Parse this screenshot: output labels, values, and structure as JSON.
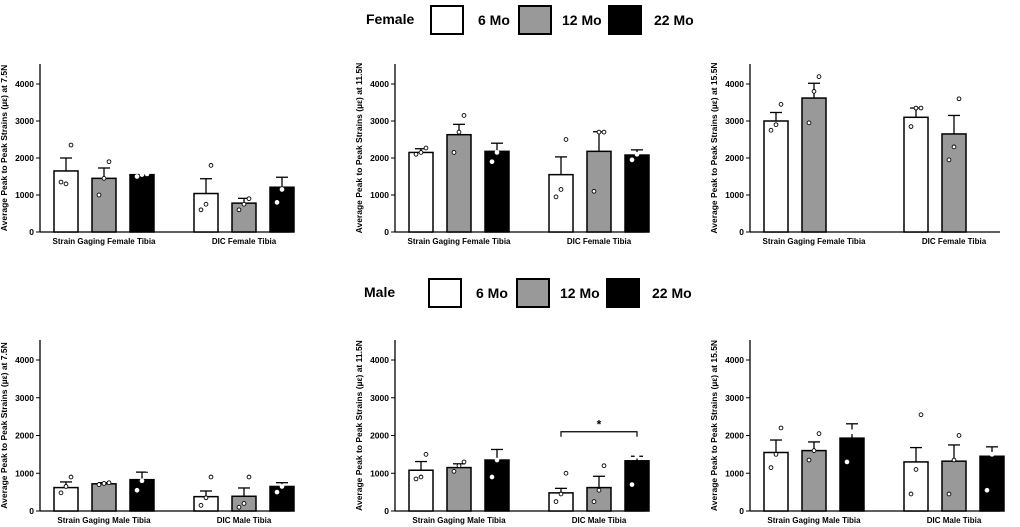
{
  "legends": [
    {
      "title": "Female",
      "items": [
        {
          "label": "6 Mo",
          "color": "#ffffff"
        },
        {
          "label": "12 Mo",
          "color": "#999999"
        },
        {
          "label": "22 Mo",
          "color": "#000000"
        }
      ]
    },
    {
      "title": "Male",
      "items": [
        {
          "label": "6 Mo",
          "color": "#ffffff"
        },
        {
          "label": "12 Mo",
          "color": "#999999"
        },
        {
          "label": "22 Mo",
          "color": "#000000"
        }
      ]
    }
  ],
  "chart_data": [
    {
      "type": "bar",
      "ylabel": "Average Peak to Peak Strains (µε) at 7.5N",
      "ylim": [
        0,
        4000
      ],
      "yticks": [
        0,
        1000,
        2000,
        3000,
        4000
      ],
      "groups": [
        "Strain Gaging",
        "DIC"
      ],
      "group_labels": [
        "Strain Gaging   Female Tibia",
        "DIC Female Tibia"
      ],
      "series": [
        {
          "name": "6 Mo",
          "values": [
            1650,
            1040
          ],
          "errors": [
            350,
            400
          ],
          "points": [
            [
              1350,
              1300,
              2350
            ],
            [
              600,
              750,
              1800
            ]
          ]
        },
        {
          "name": "12 Mo",
          "values": [
            1450,
            780
          ],
          "errors": [
            280,
            130
          ],
          "points": [
            [
              1000,
              1450,
              1900
            ],
            [
              600,
              750,
              900
            ]
          ]
        },
        {
          "name": "22 Mo",
          "values": [
            1550,
            1210
          ],
          "errors": [
            0,
            270
          ],
          "points": [
            [
              1500,
              1550,
              1570
            ],
            [
              800,
              1150,
              1600
            ]
          ]
        }
      ]
    },
    {
      "type": "bar",
      "ylabel": "Average Peak to Peak Strains (µε) at 11.5N",
      "ylim": [
        0,
        4000
      ],
      "yticks": [
        0,
        1000,
        2000,
        3000,
        4000
      ],
      "groups": [
        "Strain Gaging",
        "DIC"
      ],
      "group_labels": [
        "Strain Gaging   Female Tibia",
        "DIC Female Tibia"
      ],
      "series": [
        {
          "name": "6 Mo",
          "values": [
            2150,
            1550
          ],
          "errors": [
            100,
            480
          ],
          "points": [
            [
              2100,
              2150,
              2270
            ],
            [
              950,
              1150,
              2500
            ]
          ]
        },
        {
          "name": "12 Mo",
          "values": [
            2630,
            2180
          ],
          "errors": [
            280,
            530
          ],
          "points": [
            [
              2150,
              2700,
              3150
            ],
            [
              1100,
              2700,
              2700
            ]
          ]
        },
        {
          "name": "22 Mo",
          "values": [
            2180,
            2080
          ],
          "errors": [
            220,
            140
          ],
          "points": [
            [
              1900,
              2150,
              2550
            ],
            [
              1950,
              2100,
              2350
            ]
          ]
        }
      ]
    },
    {
      "type": "bar",
      "ylabel": "Average Peak to Peak Strains (µε) at 15.5N",
      "ylim": [
        0,
        4000
      ],
      "yticks": [
        0,
        1000,
        2000,
        3000,
        4000
      ],
      "groups": [
        "Strain Gaging",
        "DIC"
      ],
      "group_labels": [
        "Strain Gaging   Female Tibia",
        "DIC Female Tibia"
      ],
      "series": [
        {
          "name": "6 Mo",
          "values": [
            3000,
            3100
          ],
          "errors": [
            230,
            250
          ],
          "points": [
            [
              2750,
              2900,
              3450
            ],
            [
              2850,
              3350,
              3350
            ]
          ]
        },
        {
          "name": "12 Mo",
          "values": [
            3620,
            2650
          ],
          "errors": [
            400,
            500
          ],
          "points": [
            [
              2950,
              3800,
              4200
            ],
            [
              1950,
              2300,
              3600
            ]
          ]
        },
        {
          "name": "22 Mo",
          "values": [
            null,
            null
          ],
          "errors": [
            null,
            null
          ],
          "points": [
            [],
            []
          ]
        }
      ]
    },
    {
      "type": "bar",
      "ylabel": "Average Peak to Peak Strains (µε) at 7.5N",
      "ylim": [
        0,
        4000
      ],
      "yticks": [
        0,
        1000,
        2000,
        3000,
        4000
      ],
      "groups": [
        "Strain Gaging",
        "DIC"
      ],
      "group_labels": [
        "Strain Gaging   Male Tibia",
        "DIC Male Tibia"
      ],
      "series": [
        {
          "name": "6 Mo",
          "values": [
            620,
            380
          ],
          "errors": [
            150,
            150
          ],
          "points": [
            [
              480,
              650,
              900
            ],
            [
              150,
              350,
              900
            ]
          ]
        },
        {
          "name": "12 Mo",
          "values": [
            720,
            390
          ],
          "errors": [
            30,
            220
          ],
          "points": [
            [
              700,
              730,
              750
            ],
            [
              100,
              200,
              900
            ]
          ]
        },
        {
          "name": "22 Mo",
          "values": [
            830,
            650
          ],
          "errors": [
            200,
            100
          ],
          "points": [
            [
              550,
              800,
              1100
            ],
            [
              500,
              650,
              850
            ]
          ]
        }
      ]
    },
    {
      "type": "bar",
      "ylabel": "Average Peak to Peak Strains (µε) at 11.5N",
      "ylim": [
        0,
        4000
      ],
      "yticks": [
        0,
        1000,
        2000,
        3000,
        4000
      ],
      "groups": [
        "Strain Gaging",
        "DIC"
      ],
      "group_labels": [
        "Strain Gaging   Male Tibia",
        "DIC Male Tibia"
      ],
      "series": [
        {
          "name": "6 Mo",
          "values": [
            1080,
            480
          ],
          "errors": [
            230,
            120
          ],
          "points": [
            [
              850,
              900,
              1500
            ],
            [
              250,
              450,
              1000
            ]
          ]
        },
        {
          "name": "12 Mo",
          "values": [
            1150,
            620
          ],
          "errors": [
            100,
            300
          ],
          "points": [
            [
              1050,
              1200,
              1300
            ],
            [
              250,
              550,
              1200
            ]
          ]
        },
        {
          "name": "22 Mo",
          "values": [
            1350,
            1330
          ],
          "errors": [
            280,
            120
          ],
          "points": [
            [
              900,
              1350,
              1850
            ],
            [
              700,
              1450,
              1600
            ]
          ]
        }
      ],
      "annotation": {
        "text": "*",
        "from_group": 1,
        "from_series": 0,
        "to_series": 2,
        "y": 2100
      }
    },
    {
      "type": "bar",
      "ylabel": "Average Peak to Peak Strains (µε) at 15.5N",
      "ylim": [
        0,
        4000
      ],
      "yticks": [
        0,
        1000,
        2000,
        3000,
        4000
      ],
      "groups": [
        "Strain Gaging",
        "DIC"
      ],
      "group_labels": [
        "Strain Gaging   Male Tibia",
        "DIC Male Tibia"
      ],
      "series": [
        {
          "name": "6 Mo",
          "values": [
            1550,
            1300
          ],
          "errors": [
            330,
            380
          ],
          "points": [
            [
              1150,
              1500,
              2200
            ],
            [
              450,
              1100,
              2550
            ]
          ]
        },
        {
          "name": "12 Mo",
          "values": [
            1600,
            1320
          ],
          "errors": [
            230,
            430
          ],
          "points": [
            [
              1350,
              1600,
              2050
            ],
            [
              450,
              1350,
              2000
            ]
          ]
        },
        {
          "name": "22 Mo",
          "values": [
            1930,
            1450
          ],
          "errors": [
            380,
            250
          ],
          "points": [
            [
              1300,
              2100,
              2550
            ],
            [
              550,
              1500,
              1900
            ]
          ]
        }
      ]
    }
  ]
}
